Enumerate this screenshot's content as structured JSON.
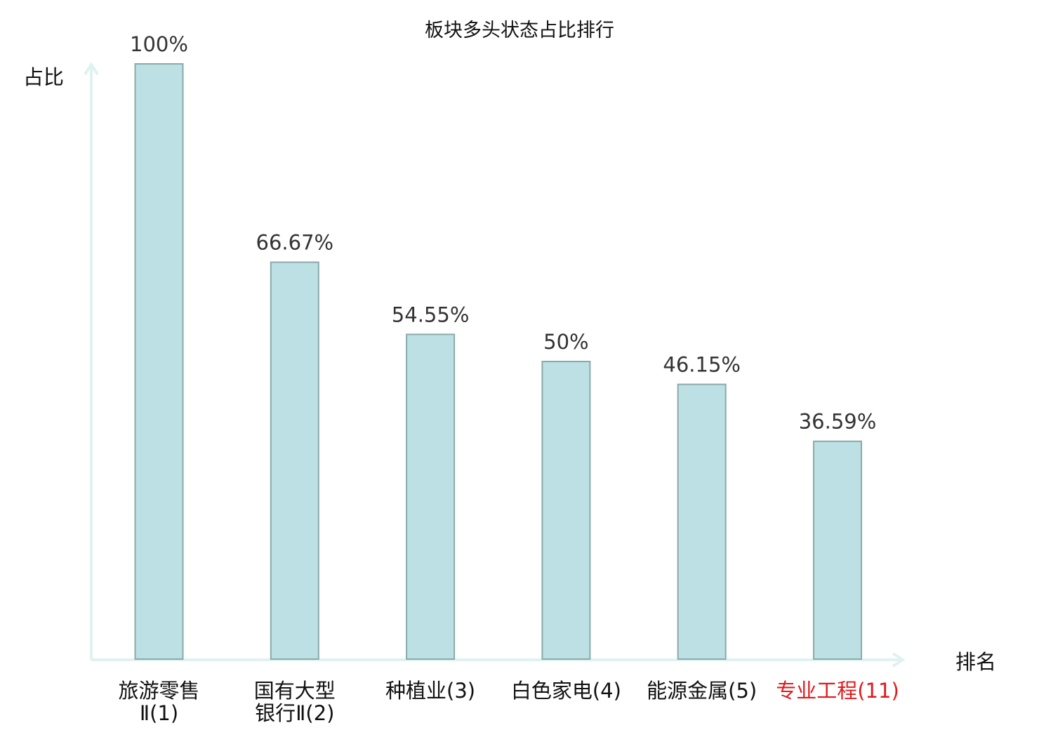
{
  "chart_data": {
    "type": "bar",
    "title": "板块多头状态占比排行",
    "ylabel": "占比",
    "xlabel": "排名",
    "categories": [
      {
        "lines": [
          "旅游零售",
          "Ⅱ(1)"
        ],
        "highlight": false
      },
      {
        "lines": [
          "国有大型",
          "银行Ⅱ(2)"
        ],
        "highlight": false
      },
      {
        "lines": [
          "种植业(3)"
        ],
        "highlight": false
      },
      {
        "lines": [
          "白色家电(4)"
        ],
        "highlight": false
      },
      {
        "lines": [
          "能源金属(5)"
        ],
        "highlight": false
      },
      {
        "lines": [
          "专业工程(11)"
        ],
        "highlight": true
      }
    ],
    "values": [
      100,
      66.67,
      54.55,
      50,
      46.15,
      36.59
    ],
    "value_labels": [
      "100%",
      "66.67%",
      "54.55%",
      "50%",
      "46.15%",
      "36.59%"
    ],
    "ylim": [
      0,
      100
    ],
    "grid": false,
    "colors": {
      "bar_fill": "#bce0e3",
      "bar_stroke": "#8aaaa9",
      "axis": "#dff2ef",
      "highlight_text": "#e0191d"
    }
  }
}
